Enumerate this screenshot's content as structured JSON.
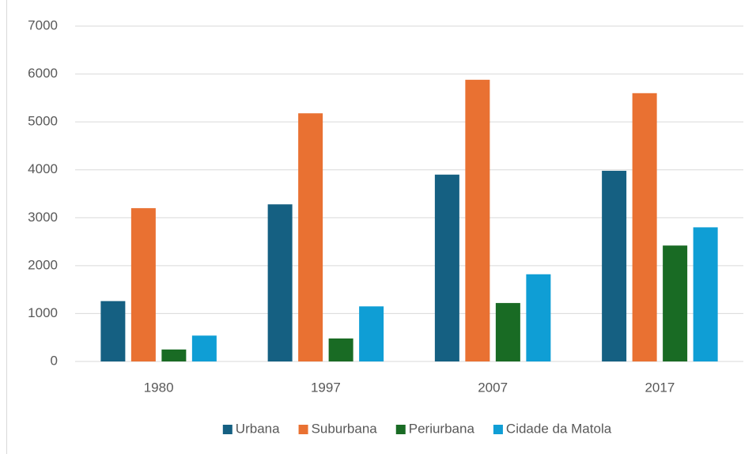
{
  "chart_data": {
    "type": "bar",
    "categories": [
      "1980",
      "1997",
      "2007",
      "2017"
    ],
    "series": [
      {
        "name": "Urbana",
        "color": "#156082",
        "values": [
          1260,
          3280,
          3900,
          3980
        ]
      },
      {
        "name": "Suburbana",
        "color": "#e97132",
        "values": [
          3200,
          5180,
          5880,
          5600
        ]
      },
      {
        "name": "Periurbana",
        "color": "#196b24",
        "values": [
          250,
          480,
          1220,
          2420
        ]
      },
      {
        "name": "Cidade da Matola",
        "color": "#0f9ed5",
        "values": [
          540,
          1150,
          1820,
          2800
        ]
      }
    ],
    "ylim": [
      0,
      7000
    ],
    "yticks": [
      0,
      1000,
      2000,
      3000,
      4000,
      5000,
      6000,
      7000
    ],
    "grid": true,
    "legend": "bottom"
  }
}
